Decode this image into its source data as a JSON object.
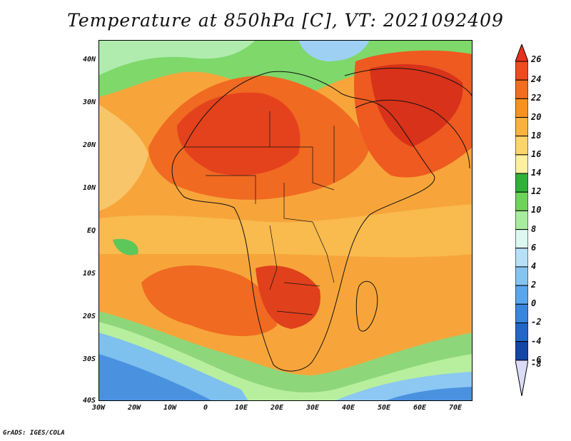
{
  "title": "Temperature at 850hPa [C], VT: 2021092409",
  "credit": "GrADS: IGES/COLA",
  "map": {
    "lat_labels": [
      "40N",
      "30N",
      "20N",
      "10N",
      "EQ",
      "10S",
      "20S",
      "30S",
      "40S"
    ],
    "lon_labels": [
      "30W",
      "20W",
      "10W",
      "0",
      "10E",
      "20E",
      "30E",
      "40E",
      "50E",
      "60E",
      "70E"
    ],
    "lat_range": [
      -40,
      45
    ],
    "lon_range": [
      -30,
      75
    ]
  },
  "colorbar": {
    "labels": [
      "26",
      "24",
      "22",
      "20",
      "18",
      "16",
      "14",
      "12",
      "10",
      "8",
      "6",
      "4",
      "2",
      "0",
      "-2",
      "-4",
      "-6",
      "-8"
    ],
    "colors": [
      "#e8301e",
      "#f04a1e",
      "#f36d1e",
      "#f7921e",
      "#f9b23c",
      "#fcd56a",
      "#fdf0a0",
      "#2fb13a",
      "#6fd25a",
      "#a8ec9e",
      "#dcf8f0",
      "#b6e0f6",
      "#86c4f0",
      "#5aa6ec",
      "#3a86de",
      "#2466c8",
      "#1446a6",
      "#0a2a7a"
    ]
  }
}
